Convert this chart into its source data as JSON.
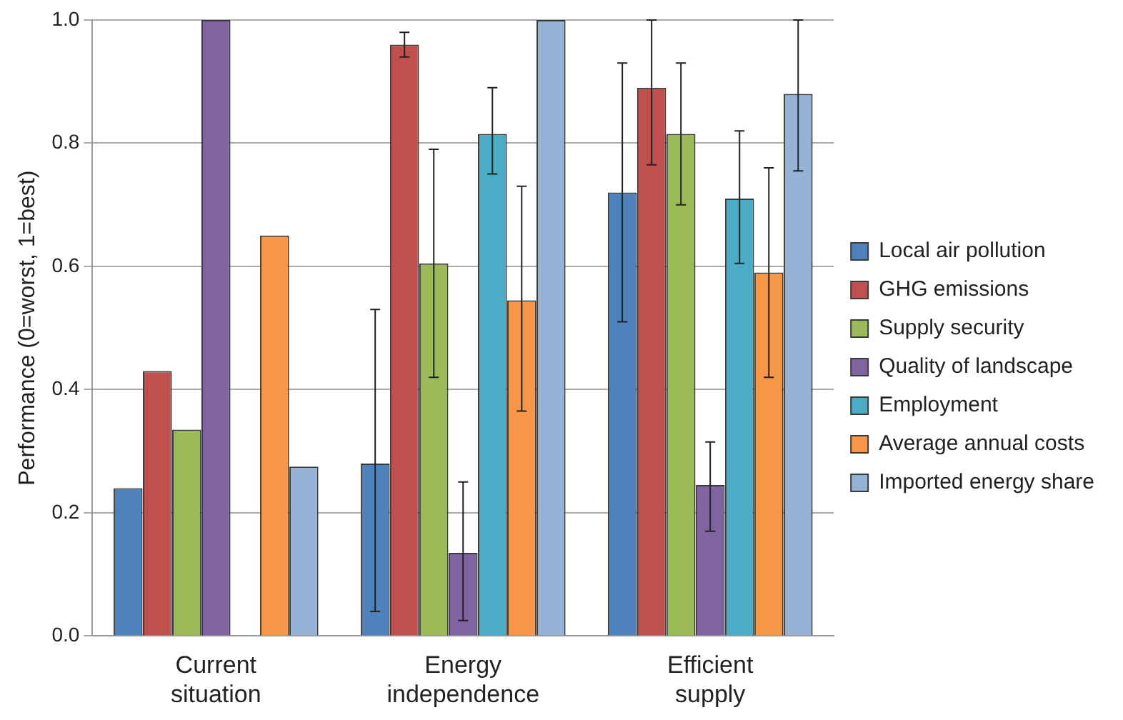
{
  "chart_data": {
    "type": "bar",
    "ylabel": "Performance (0=worst, 1=best)",
    "categories": [
      "Current situation",
      "Energy independence",
      "Efficient supply"
    ],
    "series": [
      {
        "name": "Local air pollution",
        "color": "#4f81bd",
        "values": [
          0.24,
          0.28,
          0.72
        ],
        "errors": [
          null,
          [
            0.04,
            0.53
          ],
          [
            0.51,
            0.93
          ]
        ]
      },
      {
        "name": "GHG emissions",
        "color": "#c0504d",
        "values": [
          0.43,
          0.96,
          0.89
        ],
        "errors": [
          null,
          [
            0.94,
            0.98
          ],
          [
            0.765,
            1.0
          ]
        ]
      },
      {
        "name": "Supply security",
        "color": "#9bbb59",
        "values": [
          0.335,
          0.605,
          0.815
        ],
        "errors": [
          null,
          [
            0.42,
            0.79
          ],
          [
            0.7,
            0.93
          ]
        ]
      },
      {
        "name": "Quality of landscape",
        "color": "#8064a2",
        "values": [
          1.0,
          0.135,
          0.245
        ],
        "errors": [
          null,
          [
            0.025,
            0.25
          ],
          [
            0.17,
            0.315
          ]
        ]
      },
      {
        "name": "Employment",
        "color": "#4bacc6",
        "values": [
          0,
          0.815,
          0.71
        ],
        "errors": [
          null,
          [
            0.75,
            0.89
          ],
          [
            0.605,
            0.82
          ]
        ]
      },
      {
        "name": "Average annual costs",
        "color": "#f79646",
        "values": [
          0.65,
          0.545,
          0.59
        ],
        "errors": [
          null,
          [
            0.365,
            0.73
          ],
          [
            0.42,
            0.76
          ]
        ]
      },
      {
        "name": "Imported energy share",
        "color": "#95b3d7",
        "values": [
          0.275,
          1.0,
          0.88
        ],
        "errors": [
          null,
          null,
          [
            0.755,
            1.0
          ]
        ]
      }
    ],
    "ylim": [
      0,
      1
    ],
    "yticks": [
      {
        "value": 0,
        "label": "0.0"
      },
      {
        "value": 0.2,
        "label": "0.2"
      },
      {
        "value": 0.4,
        "label": "0.4"
      },
      {
        "value": 0.6,
        "label": "0.6"
      },
      {
        "value": 0.8,
        "label": "0.8"
      },
      {
        "value": 1,
        "label": "1.0"
      }
    ],
    "grid": "y",
    "legend": "right"
  }
}
